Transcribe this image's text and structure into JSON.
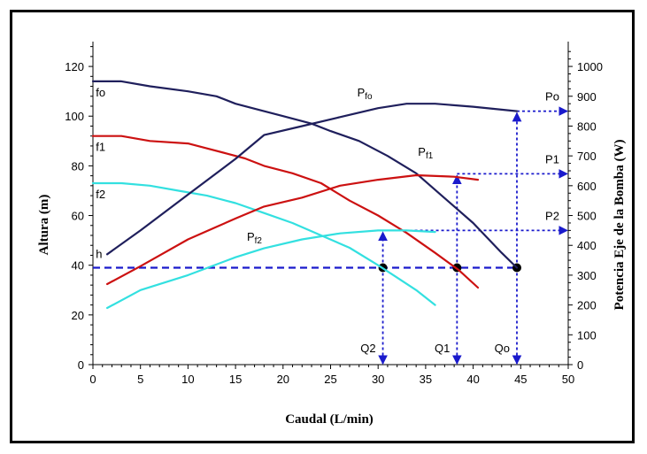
{
  "chart_data": {
    "type": "line",
    "xlabel": "Caudal (L/min)",
    "ylabel": "Altura (m)",
    "y2label": "Potencia Eje de la Bomba (W)",
    "xlim": [
      0,
      50
    ],
    "ylim": [
      0,
      130
    ],
    "y2lim": [
      0,
      1083.3
    ],
    "x_ticks": [
      0,
      5,
      10,
      15,
      20,
      25,
      30,
      35,
      40,
      45,
      50
    ],
    "y_ticks": [
      0,
      20,
      40,
      60,
      80,
      100,
      120
    ],
    "y2_ticks": [
      0,
      100,
      200,
      300,
      400,
      500,
      600,
      700,
      800,
      900,
      1000
    ],
    "grid": false,
    "colors": {
      "f0": "#1f1f5c",
      "f1": "#cc1111",
      "f2": "#33e0e0",
      "guide": "#1a1acc"
    },
    "series": [
      {
        "name": "fo",
        "axis": "left",
        "color_key": "f0",
        "x": [
          0,
          3,
          6,
          10,
          13,
          15,
          17,
          20,
          23,
          25,
          28,
          31,
          34,
          37,
          40,
          43,
          44.6
        ],
        "y": [
          114,
          114,
          112,
          110,
          108,
          105,
          103,
          100,
          97,
          94,
          90,
          84,
          77,
          67,
          57,
          45,
          39
        ]
      },
      {
        "name": "f1",
        "axis": "left",
        "color_key": "f1",
        "x": [
          0,
          3,
          6,
          10,
          12,
          14,
          16,
          18,
          21,
          24,
          27,
          30,
          33,
          36,
          38.5,
          40.5
        ],
        "y": [
          92,
          92,
          90,
          89,
          87,
          85,
          83,
          80,
          77,
          73,
          66,
          60,
          53,
          45,
          38,
          31
        ]
      },
      {
        "name": "f2",
        "axis": "left",
        "color_key": "f2",
        "x": [
          0,
          3,
          6,
          9,
          12,
          15,
          18,
          21,
          24,
          27,
          30,
          32,
          34,
          36
        ],
        "y": [
          73,
          73,
          72,
          70,
          68,
          65,
          61,
          57,
          52,
          47,
          40,
          35,
          30,
          24
        ]
      },
      {
        "name": "Pf0",
        "axis": "right",
        "color_key": "f0",
        "x": [
          1.5,
          5,
          10,
          15,
          18,
          22,
          26,
          30,
          33,
          36,
          40,
          44.6
        ],
        "y": [
          370,
          450,
          570,
          690,
          770,
          800,
          830,
          860,
          875,
          875,
          865,
          850
        ]
      },
      {
        "name": "Pf1",
        "axis": "right",
        "color_key": "f1",
        "x": [
          1.5,
          5,
          10,
          15,
          18,
          22,
          26,
          30,
          34,
          38,
          40.5
        ],
        "y": [
          270,
          330,
          420,
          490,
          530,
          560,
          600,
          620,
          635,
          630,
          620
        ]
      },
      {
        "name": "Pf2",
        "axis": "right",
        "color_key": "f2",
        "x": [
          1.5,
          5,
          10,
          15,
          18,
          22,
          26,
          30,
          33,
          36
        ],
        "y": [
          190,
          250,
          300,
          360,
          390,
          420,
          440,
          450,
          450,
          445
        ]
      }
    ],
    "operating_points": [
      {
        "label": "Q2",
        "x": 30.5,
        "y": 39,
        "power_label": "P2",
        "power": 450
      },
      {
        "label": "Q1",
        "x": 38.3,
        "y": 39,
        "power_label": "P1",
        "power": 640
      },
      {
        "label": "Qo",
        "x": 44.6,
        "y": 39,
        "power_label": "Po",
        "power": 850
      }
    ],
    "h_line": {
      "label": "h",
      "y": 39
    },
    "curve_labels": [
      {
        "text": "fo",
        "x": 0.3,
        "y": 108,
        "axis": "left"
      },
      {
        "text": "f1",
        "x": 0.3,
        "y": 86,
        "axis": "left"
      },
      {
        "text": "f2",
        "x": 0.3,
        "y": 67,
        "axis": "left"
      },
      {
        "text": "h",
        "x": 0.3,
        "y": 43,
        "axis": "left"
      },
      {
        "main": "P",
        "sub": "fo",
        "x": 27.8,
        "y": 900,
        "axis": "right"
      },
      {
        "main": "P",
        "sub": "f1",
        "x": 34.2,
        "y": 700,
        "axis": "right"
      },
      {
        "main": "P",
        "sub": "f2",
        "x": 16.2,
        "y": 415,
        "axis": "right"
      }
    ]
  }
}
